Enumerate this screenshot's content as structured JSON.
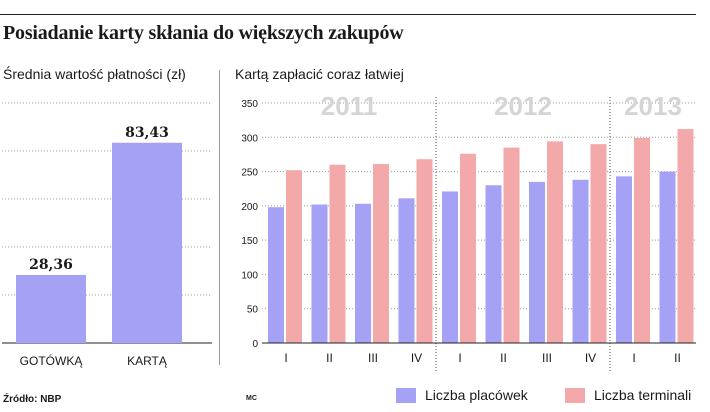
{
  "header": {
    "title": "Posiadanie karty skłania do większych zakupów"
  },
  "footer": {
    "source": "Źródło: NBP",
    "credit": "MC"
  },
  "colors": {
    "placowki": "#a5a2f5",
    "terminale": "#f3a9aa",
    "gotowka": "#a5a2f5",
    "karta": "#a5a2f5",
    "year_text": "#d5d5d5"
  },
  "chart_data": [
    {
      "type": "bar",
      "title": "Średnia wartość płatności (zł)",
      "categories": [
        "GOTÓWKĄ",
        "KARTĄ"
      ],
      "values": [
        28.36,
        83.43
      ],
      "value_labels": [
        "28,36",
        "83,43"
      ],
      "ylim": [
        0,
        100
      ],
      "grid": "dotted horizontal"
    },
    {
      "type": "bar",
      "title": "Kartą zapłacić coraz łatwiej",
      "categories": [
        "I",
        "II",
        "III",
        "IV",
        "I",
        "II",
        "III",
        "IV",
        "I",
        "II"
      ],
      "year_groups": [
        {
          "label": "2011",
          "count": 4
        },
        {
          "label": "2012",
          "count": 4
        },
        {
          "label": "2013",
          "count": 2
        }
      ],
      "series": [
        {
          "name": "Liczba placówek",
          "values": [
            198,
            202,
            203,
            211,
            221,
            230,
            235,
            238,
            243,
            250
          ]
        },
        {
          "name": "Liczba terminali",
          "values": [
            252,
            260,
            261,
            268,
            276,
            285,
            294,
            290,
            299,
            312
          ]
        }
      ],
      "yticks": [
        0,
        50,
        100,
        150,
        200,
        250,
        300,
        350
      ],
      "ylim": [
        0,
        350
      ],
      "grid": "dotted horizontal",
      "legend": "bottom"
    }
  ]
}
